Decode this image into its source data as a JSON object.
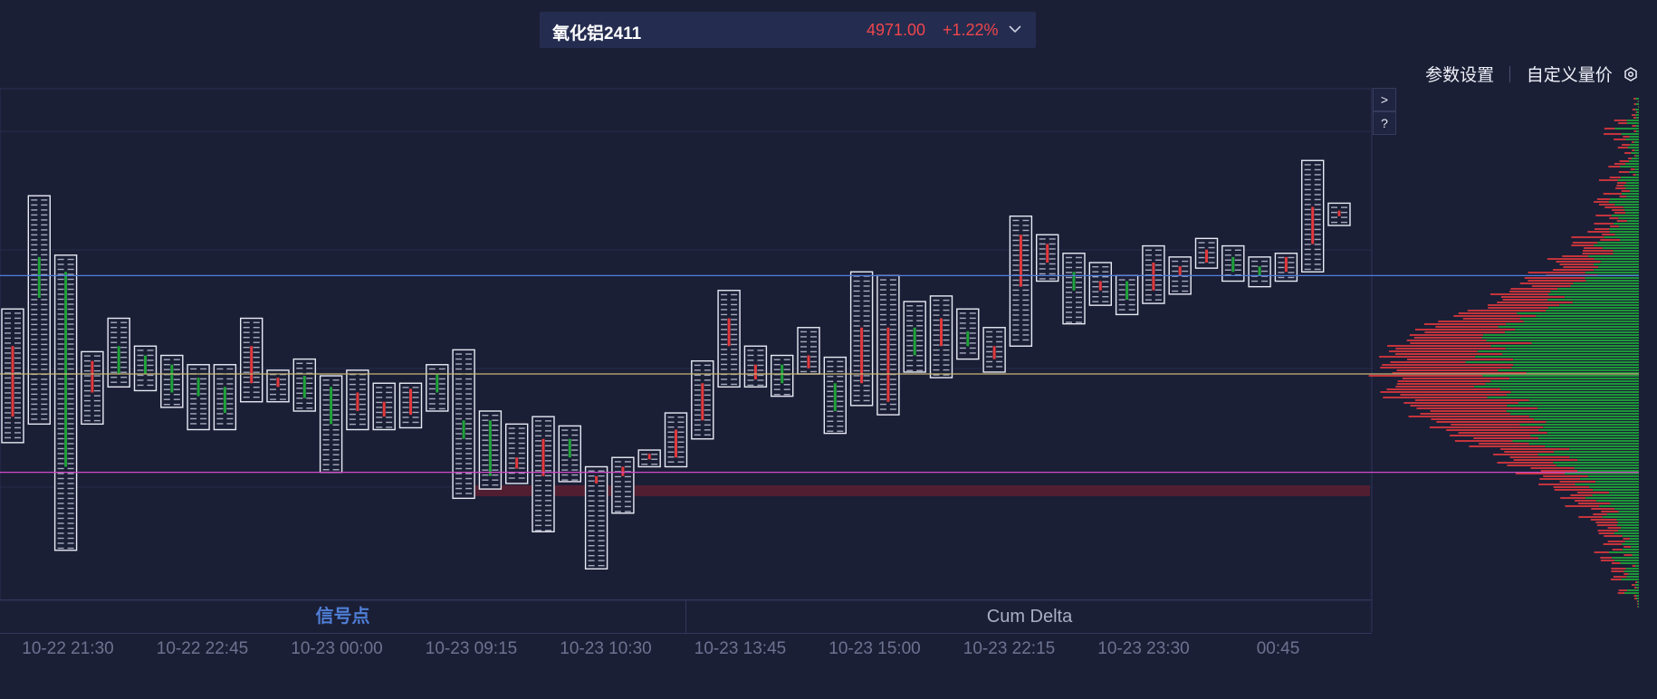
{
  "header": {
    "symbol": "氧化铝2411",
    "price": "4971.00",
    "change_pct": "+1.22%"
  },
  "toolbar": {
    "settings_label": "参数设置",
    "custom_label": "自定义量价"
  },
  "side_buttons": {
    "expand": ">",
    "help": "?"
  },
  "tabs": {
    "signal": "信号点",
    "cum_delta": "Cum Delta"
  },
  "colors": {
    "background": "#1b1f36",
    "up": "#e2383c",
    "down": "#1fa33a",
    "line_blue": "#4d7fe0",
    "line_yellow": "#c8b678",
    "line_magenta": "#d04ac8",
    "zone": "#5a1f30"
  },
  "chart_data": {
    "type": "footprint",
    "x_tick_labels": [
      "10-22 21:30",
      "10-22 22:45",
      "10-23 00:00",
      "10-23 09:15",
      "10-23 10:30",
      "10-23 13:45",
      "10-23 15:00",
      "10-23 22:15",
      "10-23 23:30",
      "00:45"
    ],
    "levels": {
      "blue_line": 4958,
      "yellow_line": 4905,
      "magenta_line": 4852
    },
    "candles": [
      {
        "high": 4940,
        "low": 4868,
        "open": 4882,
        "close": 4920,
        "color": "up"
      },
      {
        "high": 5001,
        "low": 4878,
        "open": 4946,
        "close": 4968,
        "color": "down"
      },
      {
        "high": 4969,
        "low": 4810,
        "open": 4960,
        "close": 4855,
        "color": "down"
      },
      {
        "high": 4917,
        "low": 4878,
        "open": 4912,
        "close": 4895,
        "color": "up"
      },
      {
        "high": 4935,
        "low": 4898,
        "open": 4920,
        "close": 4905,
        "color": "down"
      },
      {
        "high": 4920,
        "low": 4896,
        "open": 4905,
        "close": 4915,
        "color": "down"
      },
      {
        "high": 4915,
        "low": 4887,
        "open": 4895,
        "close": 4910,
        "color": "down"
      },
      {
        "high": 4910,
        "low": 4875,
        "open": 4893,
        "close": 4903,
        "color": "down"
      },
      {
        "high": 4910,
        "low": 4875,
        "open": 4884,
        "close": 4898,
        "color": "down"
      },
      {
        "high": 4935,
        "low": 4890,
        "open": 4920,
        "close": 4900,
        "color": "up"
      },
      {
        "high": 4907,
        "low": 4890,
        "open": 4898,
        "close": 4903,
        "color": "up"
      },
      {
        "high": 4913,
        "low": 4885,
        "open": 4892,
        "close": 4904,
        "color": "down"
      },
      {
        "high": 4904,
        "low": 4852,
        "open": 4878,
        "close": 4898,
        "color": "down"
      },
      {
        "high": 4907,
        "low": 4875,
        "open": 4895,
        "close": 4885,
        "color": "up"
      },
      {
        "high": 4900,
        "low": 4875,
        "open": 4882,
        "close": 4890,
        "color": "up"
      },
      {
        "high": 4900,
        "low": 4876,
        "open": 4883,
        "close": 4897,
        "color": "up"
      },
      {
        "high": 4910,
        "low": 4885,
        "open": 4895,
        "close": 4905,
        "color": "down"
      },
      {
        "high": 4918,
        "low": 4838,
        "open": 4870,
        "close": 4880,
        "color": "down"
      },
      {
        "high": 4885,
        "low": 4843,
        "open": 4880,
        "close": 4850,
        "color": "down"
      },
      {
        "high": 4878,
        "low": 4846,
        "open": 4860,
        "close": 4854,
        "color": "up"
      },
      {
        "high": 4882,
        "low": 4820,
        "open": 4850,
        "close": 4870,
        "color": "up"
      },
      {
        "high": 4877,
        "low": 4847,
        "open": 4860,
        "close": 4870,
        "color": "down"
      },
      {
        "high": 4855,
        "low": 4800,
        "open": 4846,
        "close": 4850,
        "color": "up"
      },
      {
        "high": 4860,
        "low": 4830,
        "open": 4850,
        "close": 4855,
        "color": "up"
      },
      {
        "high": 4864,
        "low": 4855,
        "open": 4859,
        "close": 4862,
        "color": "up"
      },
      {
        "high": 4884,
        "low": 4855,
        "open": 4860,
        "close": 4875,
        "color": "up"
      },
      {
        "high": 4912,
        "low": 4870,
        "open": 4880,
        "close": 4900,
        "color": "up"
      },
      {
        "high": 4950,
        "low": 4898,
        "open": 4920,
        "close": 4935,
        "color": "up"
      },
      {
        "high": 4920,
        "low": 4898,
        "open": 4910,
        "close": 4902,
        "color": "up"
      },
      {
        "high": 4915,
        "low": 4893,
        "open": 4900,
        "close": 4910,
        "color": "down"
      },
      {
        "high": 4930,
        "low": 4905,
        "open": 4915,
        "close": 4908,
        "color": "up"
      },
      {
        "high": 4914,
        "low": 4873,
        "open": 4900,
        "close": 4885,
        "color": "down"
      },
      {
        "high": 4960,
        "low": 4888,
        "open": 4930,
        "close": 4900,
        "color": "up"
      },
      {
        "high": 4958,
        "low": 4883,
        "open": 4930,
        "close": 4890,
        "color": "up"
      },
      {
        "high": 4944,
        "low": 4906,
        "open": 4930,
        "close": 4915,
        "color": "down"
      },
      {
        "high": 4947,
        "low": 4903,
        "open": 4935,
        "close": 4920,
        "color": "up"
      },
      {
        "high": 4940,
        "low": 4913,
        "open": 4928,
        "close": 4920,
        "color": "down"
      },
      {
        "high": 4930,
        "low": 4906,
        "open": 4920,
        "close": 4913,
        "color": "up"
      },
      {
        "high": 4990,
        "low": 4920,
        "open": 4952,
        "close": 4980,
        "color": "up"
      },
      {
        "high": 4980,
        "low": 4955,
        "open": 4965,
        "close": 4975,
        "color": "up"
      },
      {
        "high": 4970,
        "low": 4932,
        "open": 4960,
        "close": 4950,
        "color": "down"
      },
      {
        "high": 4965,
        "low": 4942,
        "open": 4950,
        "close": 4955,
        "color": "up"
      },
      {
        "high": 4958,
        "low": 4937,
        "open": 4945,
        "close": 4955,
        "color": "down"
      },
      {
        "high": 4974,
        "low": 4943,
        "open": 4950,
        "close": 4965,
        "color": "up"
      },
      {
        "high": 4968,
        "low": 4948,
        "open": 4958,
        "close": 4963,
        "color": "up"
      },
      {
        "high": 4978,
        "low": 4962,
        "open": 4965,
        "close": 4972,
        "color": "up"
      },
      {
        "high": 4974,
        "low": 4955,
        "open": 4960,
        "close": 4968,
        "color": "down"
      },
      {
        "high": 4968,
        "low": 4952,
        "open": 4958,
        "close": 4963,
        "color": "down"
      },
      {
        "high": 4970,
        "low": 4955,
        "open": 4960,
        "close": 4968,
        "color": "up"
      },
      {
        "high": 5020,
        "low": 4960,
        "open": 4975,
        "close": 4995,
        "color": "up"
      },
      {
        "high": 4997,
        "low": 4985,
        "open": 4990,
        "close": 4993,
        "color": "up"
      }
    ]
  }
}
